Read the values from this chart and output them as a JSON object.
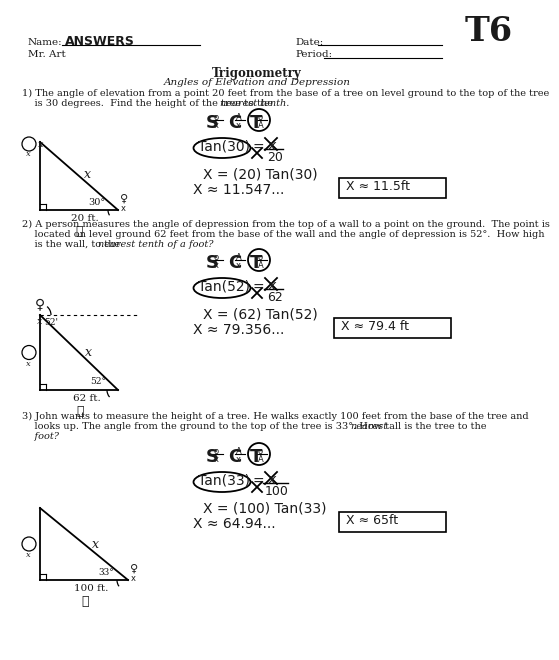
{
  "bg_color": "#ffffff",
  "text_color": "#1a1a1a",
  "title": "T6",
  "q1_line1": "1) The angle of elevation from a point 20 feet from the base of a tree on level ground to the top of the tree",
  "q1_line2": "    is 30 degrees.  Find the height of the tree to the ",
  "q1_line2_italic": "nearest tenth.",
  "q1_solve": "X = (20) Tan(30)",
  "q1_approx": "X ≈ 11.547...",
  "q1_answer": "X ≈ 11.5ft",
  "q2_line1": "2) A person measures the angle of depression from the top of a wall to a point on the ground.  The point is",
  "q2_line2": "    located on level ground 62 feet from the base of the wall and the angle of depression is 52°.  How high",
  "q2_line3": "    is the wall, to the ",
  "q2_line3_italic": "nearest tenth of a foot?",
  "q2_solve": "X = (62) Tan(52)",
  "q2_approx": "X ≈ 79.356...",
  "q2_answer": "X ≈ 79.4 ft",
  "q3_line1": "3) John wants to measure the height of a tree. He walks exactly 100 feet from the base of the tree and",
  "q3_line2": "    looks up. The angle from the ground to the top of the tree is 33°. How tall is the tree to the ",
  "q3_line2_italic": "nearest",
  "q3_line3_italic": "    foot?",
  "q3_solve": "X = (100) Tan(33)",
  "q3_approx": "X ≈ 64.94...",
  "q3_answer": "X ≈ 65ft"
}
